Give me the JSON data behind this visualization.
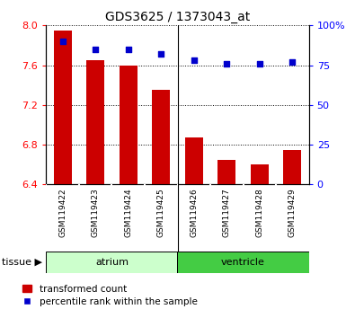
{
  "title": "GDS3625 / 1373043_at",
  "samples": [
    "GSM119422",
    "GSM119423",
    "GSM119424",
    "GSM119425",
    "GSM119426",
    "GSM119427",
    "GSM119428",
    "GSM119429"
  ],
  "transformed_count": [
    7.95,
    7.65,
    7.6,
    7.35,
    6.87,
    6.65,
    6.6,
    6.75
  ],
  "percentile_rank": [
    90,
    85,
    85,
    82,
    78,
    76,
    76,
    77
  ],
  "ylim_left": [
    6.4,
    8.0
  ],
  "ylim_right": [
    0,
    100
  ],
  "yticks_left": [
    6.4,
    6.8,
    7.2,
    7.6,
    8.0
  ],
  "yticks_right": [
    0,
    25,
    50,
    75,
    100
  ],
  "bar_color": "#cc0000",
  "scatter_color": "#0000cc",
  "bar_bottom": 6.4,
  "atrium_color_light": "#ccffcc",
  "ventricle_color_dark": "#44cc44",
  "tick_area_bg": "#cccccc",
  "plot_bg": "#ffffff",
  "bar_width": 0.55,
  "legend_red_label": "transformed count",
  "legend_blue_label": "percentile rank within the sample",
  "tissue_label": "tissue",
  "atrium_label": "atrium",
  "ventricle_label": "ventricle"
}
